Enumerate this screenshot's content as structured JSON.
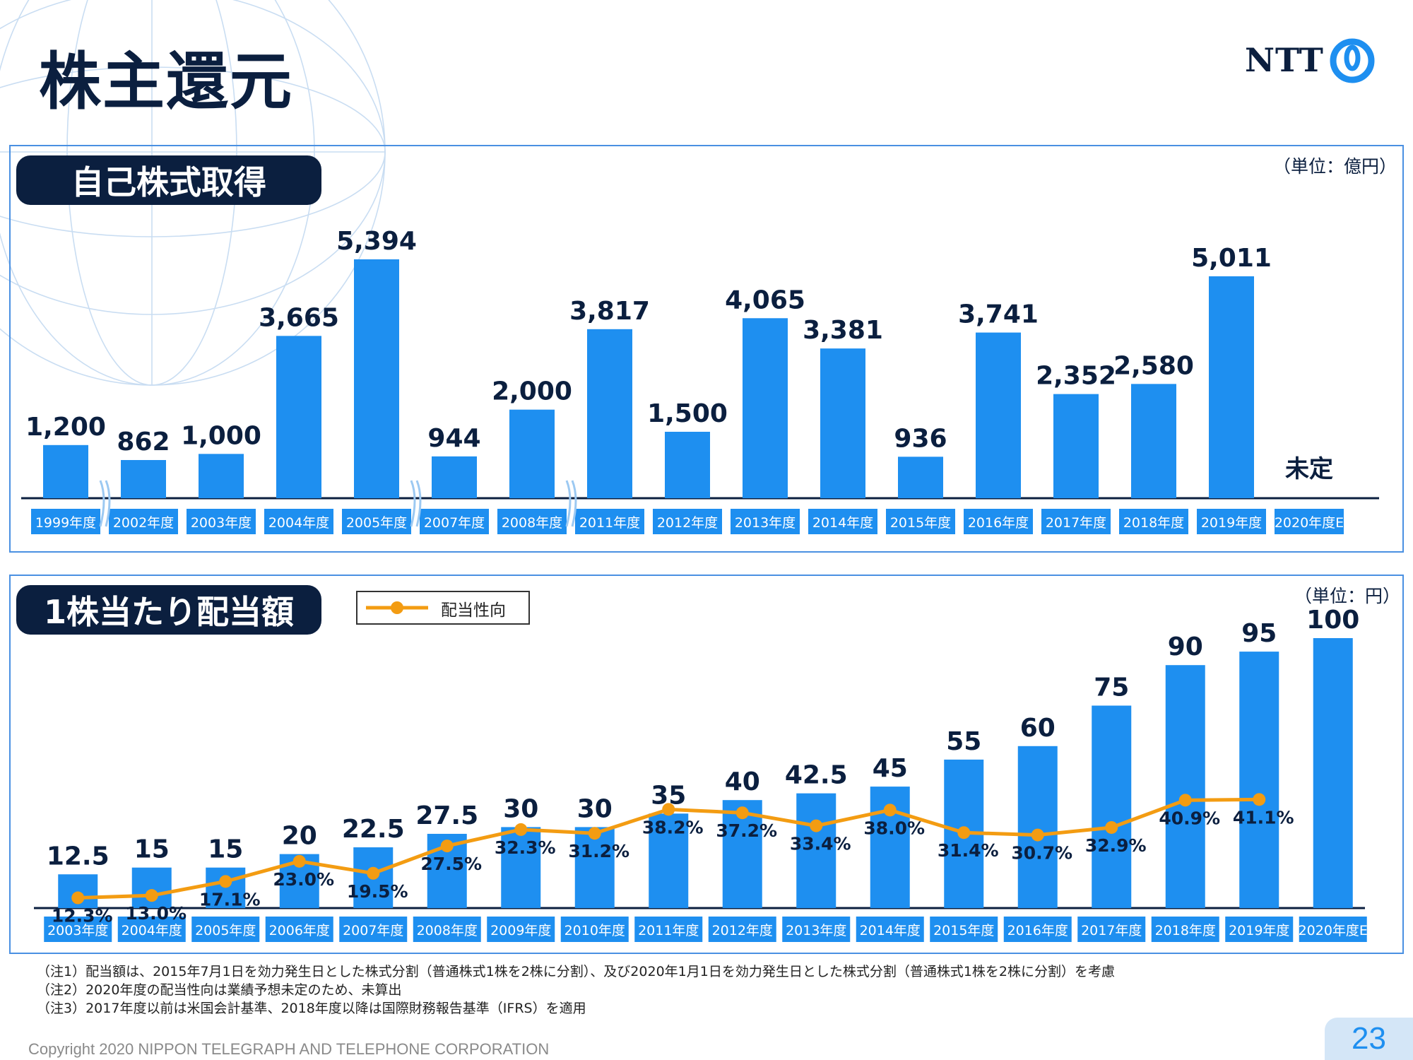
{
  "page": {
    "title": "株主還元",
    "logo_text": "NTT",
    "copyright": "Copyright 2020 NIPPON TELEGRAPH AND TELEPHONE CORPORATION",
    "page_number": "23",
    "notes": [
      "（注1）配当額は、2015年7月1日を効力発生日とした株式分割（普通株式1株を2株に分割）、及び2020年1月1日を効力発生日とした株式分割（普通株式1株を2株に分割）を考慮",
      "（注2）2020年度の配当性向は業績予想未定のため、未算出",
      "（注3）2017年度以前は米国会計基準、2018年度以降は国際財務報告基準（IFRS）を適用"
    ]
  },
  "colors": {
    "bar": "#1e8ff0",
    "line": "#f39c12",
    "navy": "#0b1f3f",
    "frame": "#4a90e2"
  },
  "chart_data": [
    {
      "type": "bar",
      "title": "自己株式取得",
      "unit": "（単位：億円）",
      "categories": [
        "1999年度",
        "2002年度",
        "2003年度",
        "2004年度",
        "2005年度",
        "2007年度",
        "2008年度",
        "2011年度",
        "2012年度",
        "2013年度",
        "2014年度",
        "2015年度",
        "2016年度",
        "2017年度",
        "2018年度",
        "2019年度",
        "2020年度E"
      ],
      "values": [
        1200,
        862,
        1000,
        3665,
        5394,
        944,
        2000,
        3817,
        1500,
        4065,
        3381,
        936,
        3741,
        2352,
        2580,
        5011,
        null
      ],
      "labels": [
        "1,200",
        "862",
        "1,000",
        "3,665",
        "5,394",
        "944",
        "2,000",
        "3,817",
        "1,500",
        "4,065",
        "3,381",
        "936",
        "3,741",
        "2,352",
        "2,580",
        "5,011",
        "未定"
      ],
      "axis_breaks_after": [
        "1999年度",
        "2005年度",
        "2008年度"
      ],
      "ylim": [
        0,
        5600
      ]
    },
    {
      "type": "bar+line",
      "title": "1株当たり配当額",
      "unit": "（単位：円）",
      "legend": "配当性向",
      "categories": [
        "2003年度",
        "2004年度",
        "2005年度",
        "2006年度",
        "2007年度",
        "2008年度",
        "2009年度",
        "2010年度",
        "2011年度",
        "2012年度",
        "2013年度",
        "2014年度",
        "2015年度",
        "2016年度",
        "2017年度",
        "2018年度",
        "2019年度",
        "2020年度E"
      ],
      "series": [
        {
          "name": "1株当たり配当額",
          "values": [
            12.5,
            15,
            15,
            20,
            22.5,
            27.5,
            30,
            30,
            35,
            40,
            42.5,
            45,
            55,
            60,
            75,
            90,
            95,
            100
          ],
          "labels": [
            "12.5",
            "15",
            "15",
            "20",
            "22.5",
            "27.5",
            "30",
            "30",
            "35",
            "40",
            "42.5",
            "45",
            "55",
            "60",
            "75",
            "90",
            "95",
            "100"
          ]
        },
        {
          "name": "配当性向",
          "values": [
            12.3,
            13.0,
            17.1,
            23.0,
            19.5,
            27.5,
            32.3,
            31.2,
            38.2,
            37.2,
            33.4,
            38.0,
            31.4,
            30.7,
            32.9,
            40.9,
            41.1,
            null
          ],
          "labels": [
            "12.3%",
            "13.0%",
            "17.1%",
            "23.0%",
            "19.5%",
            "27.5%",
            "32.3%",
            "31.2%",
            "38.2%",
            "37.2%",
            "33.4%",
            "38.0%",
            "31.4%",
            "30.7%",
            "32.9%",
            "40.9%",
            "41.1%",
            ""
          ]
        }
      ],
      "ylim": [
        0,
        105
      ]
    }
  ]
}
